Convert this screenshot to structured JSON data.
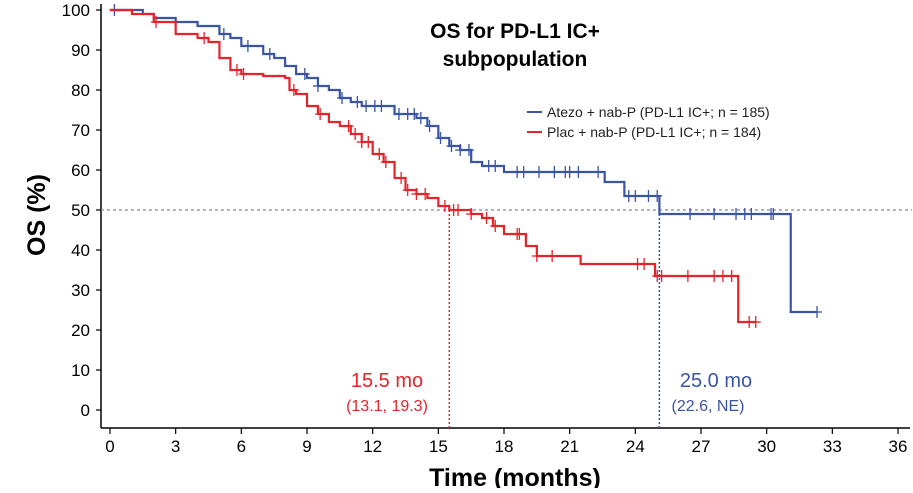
{
  "chart_data": {
    "type": "line",
    "title": "OS for PD-L1 IC+ subpopulation",
    "title_lines": [
      "OS for PD-L1 IC+",
      "subpopulation"
    ],
    "xlabel": "Time (months)",
    "ylabel": "OS (%)",
    "xlim": [
      0,
      36
    ],
    "ylim": [
      0,
      100
    ],
    "xticks": [
      0,
      3,
      6,
      9,
      12,
      15,
      18,
      21,
      24,
      27,
      30,
      33,
      36
    ],
    "yticks": [
      0,
      10,
      20,
      30,
      40,
      50,
      60,
      70,
      80,
      90,
      100
    ],
    "grid": false,
    "reference_line_y": 50,
    "legend_position": "top-right",
    "series": [
      {
        "name": "Atezo + nab-P (PD-L1 IC+; n = 185)",
        "color": "#3a55a4",
        "steps": [
          [
            0,
            100
          ],
          [
            1.5,
            99
          ],
          [
            2,
            98
          ],
          [
            3,
            97
          ],
          [
            4,
            96
          ],
          [
            5,
            94
          ],
          [
            5.5,
            93
          ],
          [
            6,
            91
          ],
          [
            7,
            89
          ],
          [
            7.5,
            88
          ],
          [
            8,
            86
          ],
          [
            8.5,
            84
          ],
          [
            9,
            83
          ],
          [
            9.5,
            81
          ],
          [
            10,
            80
          ],
          [
            10.5,
            78
          ],
          [
            11,
            77
          ],
          [
            11.5,
            76
          ],
          [
            13,
            74
          ],
          [
            14,
            73
          ],
          [
            14.5,
            71
          ],
          [
            15,
            68
          ],
          [
            15.5,
            66
          ],
          [
            16,
            65
          ],
          [
            16.5,
            62
          ],
          [
            17,
            61
          ],
          [
            18,
            59.5
          ],
          [
            22.6,
            57
          ],
          [
            23.5,
            53.5
          ],
          [
            25.1,
            49
          ],
          [
            31.1,
            24.5
          ],
          [
            32.3,
            24.5
          ]
        ],
        "censored": [
          0.2,
          5.2,
          6.3,
          7.3,
          8.9,
          9.5,
          10.6,
          11.3,
          11.7,
          12.1,
          12.4,
          13.2,
          13.6,
          13.9,
          14.2,
          14.6,
          15.1,
          15.6,
          16.0,
          16.4,
          17.3,
          17.6,
          18.6,
          18.9,
          19.6,
          20.3,
          20.8,
          21.0,
          21.4,
          22.3,
          23.7,
          24.0,
          24.6,
          25.0,
          26.5,
          27.6,
          28.6,
          29.0,
          29.3,
          30.2,
          30.3,
          32.3
        ],
        "median_months": "25.0 mo",
        "median_ci": "(22.6, NE)"
      },
      {
        "name": "Plac + nab-P (PD-L1 IC+; n = 184)",
        "color": "#e4232b",
        "steps": [
          [
            0,
            100
          ],
          [
            1,
            99
          ],
          [
            2,
            97
          ],
          [
            3,
            94
          ],
          [
            4,
            93
          ],
          [
            4.5,
            92
          ],
          [
            5,
            88
          ],
          [
            5.5,
            85
          ],
          [
            6,
            84
          ],
          [
            7,
            83.5
          ],
          [
            8,
            83
          ],
          [
            8.2,
            80
          ],
          [
            8.5,
            79
          ],
          [
            9,
            76
          ],
          [
            9.5,
            74
          ],
          [
            10,
            72
          ],
          [
            10.5,
            71
          ],
          [
            11,
            69
          ],
          [
            11.5,
            67
          ],
          [
            12,
            64
          ],
          [
            12.5,
            62
          ],
          [
            13,
            58
          ],
          [
            13.5,
            55
          ],
          [
            14,
            54
          ],
          [
            14.5,
            53
          ],
          [
            15,
            51
          ],
          [
            15.5,
            50
          ],
          [
            16.5,
            49
          ],
          [
            17,
            48
          ],
          [
            17.5,
            46
          ],
          [
            18,
            44
          ],
          [
            19,
            41
          ],
          [
            19.5,
            38.5
          ],
          [
            21.5,
            36.5
          ],
          [
            24.9,
            33.5
          ],
          [
            28.7,
            22
          ],
          [
            29.5,
            22
          ]
        ],
        "censored": [
          2.1,
          4.3,
          5.8,
          6.1,
          8.4,
          9.6,
          10.9,
          11.2,
          11.5,
          11.8,
          12.3,
          12.6,
          13.3,
          13.6,
          14.0,
          14.4,
          15.3,
          15.7,
          15.9,
          16.5,
          17.2,
          17.6,
          18.6,
          18.7,
          19.5,
          20.2,
          24.1,
          24.4,
          25.0,
          25.2,
          26.4,
          27.6,
          28.0,
          28.4,
          29.2,
          29.5
        ],
        "median_months": "15.5 mo",
        "median_ci": "(13.1, 19.3)"
      }
    ]
  }
}
